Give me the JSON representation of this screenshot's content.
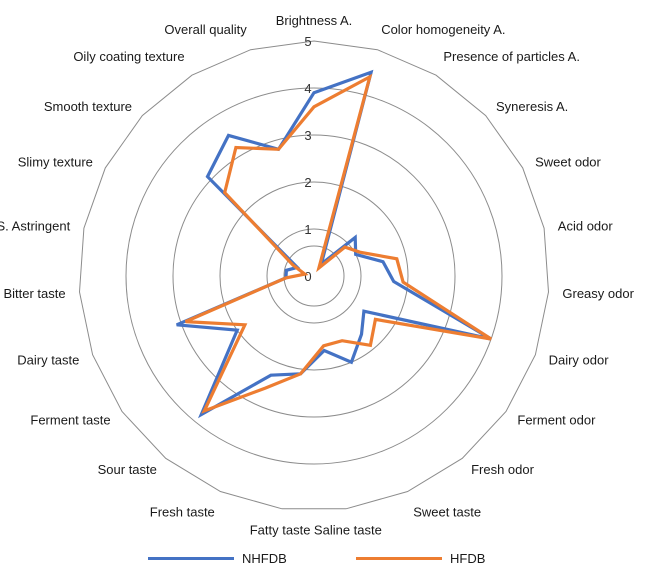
{
  "chart_data": {
    "type": "radar",
    "title": "",
    "r_ticks": [
      "0",
      "1",
      "2",
      "3",
      "4",
      "5"
    ],
    "rlim": [
      0,
      5
    ],
    "grid": true,
    "legend_position": "bottom",
    "categories": [
      "Brightness A.",
      "Color homogeneity A.",
      "Presence of particles A.",
      "Syneresis A.",
      "Sweet odor",
      "Acid odor",
      "Greasy odor",
      "Dairy odor",
      "Ferment odor",
      "Fresh odor",
      "Sweet taste",
      "Saline taste",
      "Fatty taste",
      "Fresh taste",
      "Sour taste",
      "Ferment taste",
      "Dairy taste",
      "Bitter taste",
      "S.S. Astringent",
      "Slimy texture",
      "Smooth texture",
      "Oily coating texture",
      "Overall quality"
    ],
    "series": [
      {
        "name": "NHFDB",
        "color": "#4472c4",
        "values": [
          3.9,
          4.5,
          0.3,
          1.2,
          1.0,
          1.5,
          1.7,
          4.0,
          1.3,
          1.6,
          2.0,
          1.6,
          2.1,
          2.3,
          3.8,
          2.0,
          3.1,
          0.6,
          0.6,
          0.4,
          3.1,
          3.5,
          2.8
        ]
      },
      {
        "name": "HFDB",
        "color": "#ed7d31",
        "values": [
          3.6,
          4.4,
          0.2,
          0.9,
          1.1,
          1.8,
          1.9,
          4.0,
          1.6,
          1.9,
          1.5,
          1.5,
          2.1,
          2.6,
          3.7,
          1.8,
          2.9,
          0.6,
          0.2,
          0.5,
          2.6,
          3.2,
          2.8
        ]
      }
    ]
  },
  "legend": {
    "items": [
      "NHFDB",
      "HFDB"
    ]
  }
}
